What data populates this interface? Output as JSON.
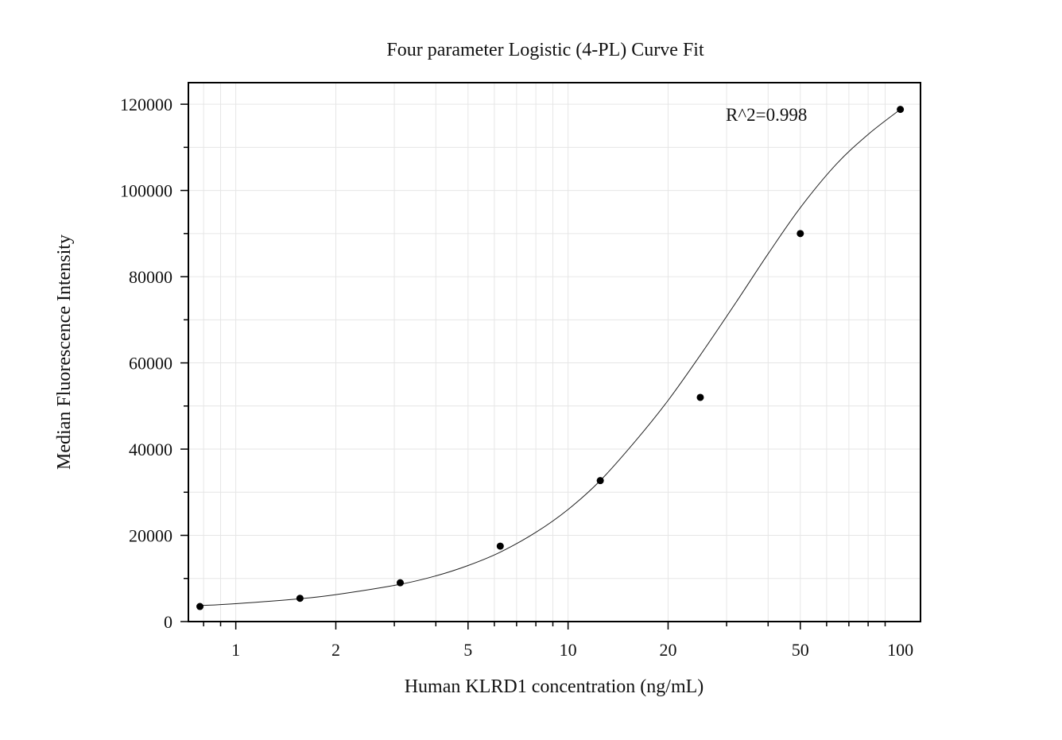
{
  "chart_data": {
    "type": "scatter",
    "title": "Four parameter Logistic (4-PL) Curve Fit",
    "xlabel": "Human KLRD1 concentration (ng/mL)",
    "ylabel": "Median Fluorescence Intensity",
    "x_scale": "log10",
    "xlim": [
      0.72,
      115
    ],
    "ylim": [
      0,
      125000
    ],
    "x_ticks": [
      1,
      2,
      5,
      10,
      20,
      50,
      100
    ],
    "x_tick_labels": [
      "1",
      "2",
      "5",
      "10",
      "20",
      "50",
      "100"
    ],
    "y_ticks": [
      0,
      20000,
      40000,
      60000,
      80000,
      100000,
      120000
    ],
    "y_tick_labels": [
      "0",
      "20000",
      "40000",
      "60000",
      "80000",
      "100000",
      "120000"
    ],
    "grid": true,
    "annotation": "R^2=0.998",
    "points": {
      "x": [
        0.78,
        1.56,
        3.125,
        6.25,
        12.5,
        25,
        50,
        100
      ],
      "y": [
        3500,
        5400,
        9000,
        17500,
        32700,
        52000,
        90000,
        118800
      ]
    },
    "fit": {
      "model": "4PL",
      "x": [
        0.78,
        1.0,
        1.56,
        2.0,
        3.125,
        4.0,
        5.0,
        6.25,
        8.0,
        10.0,
        12.5,
        16.0,
        20.0,
        25.0,
        32.0,
        40.0,
        50.0,
        64.0,
        80.0,
        100.0
      ],
      "y": [
        3700,
        4150,
        5300,
        6250,
        8650,
        10600,
        13000,
        16100,
        20700,
        26000,
        32700,
        42000,
        51300,
        61800,
        74000,
        85300,
        96000,
        106000,
        113000,
        118800
      ]
    },
    "colors": {
      "points": "#000000",
      "curve": "#222222",
      "grid": "#e6e6e6"
    }
  }
}
